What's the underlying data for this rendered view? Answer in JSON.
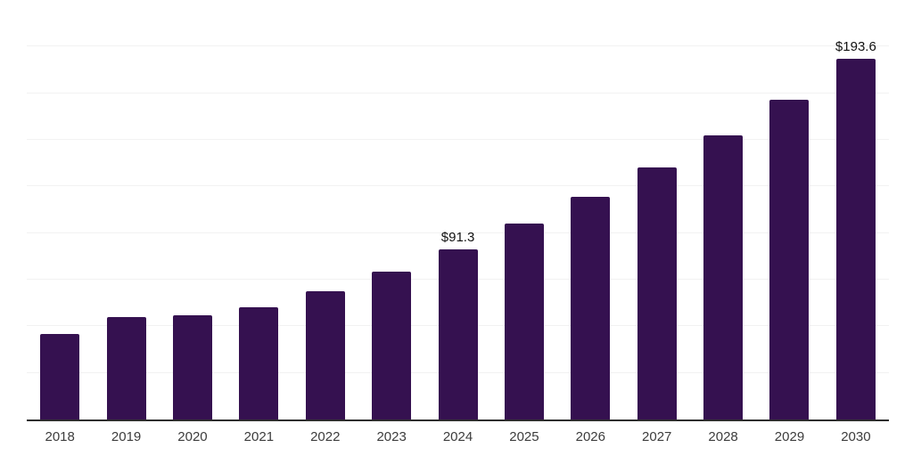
{
  "chart_data": {
    "type": "bar",
    "title": "",
    "xlabel": "",
    "ylabel": "",
    "categories": [
      "2018",
      "2019",
      "2020",
      "2021",
      "2022",
      "2023",
      "2024",
      "2025",
      "2026",
      "2027",
      "2028",
      "2029",
      "2030"
    ],
    "values": [
      46.0,
      55.0,
      55.9,
      60.3,
      69.0,
      79.5,
      91.3,
      105.3,
      119.2,
      135.0,
      152.3,
      171.4,
      193.6
    ],
    "value_labels": [
      "",
      "",
      "",
      "",
      "",
      "",
      "$91.3",
      "",
      "",
      "",
      "",
      "",
      "$193.6"
    ],
    "ylim": [
      0,
      225
    ],
    "grid_interval": 25,
    "grid": "horizontal-only",
    "legend_position": "none",
    "y_axis_labels_visible": false,
    "colors": {
      "bar": "#351150",
      "axis_line": "#2e2e2e",
      "gridline": "#f2f2f2",
      "value_label": "#111111",
      "tick_label": "#3c3c3c",
      "background": "#ffffff"
    }
  }
}
